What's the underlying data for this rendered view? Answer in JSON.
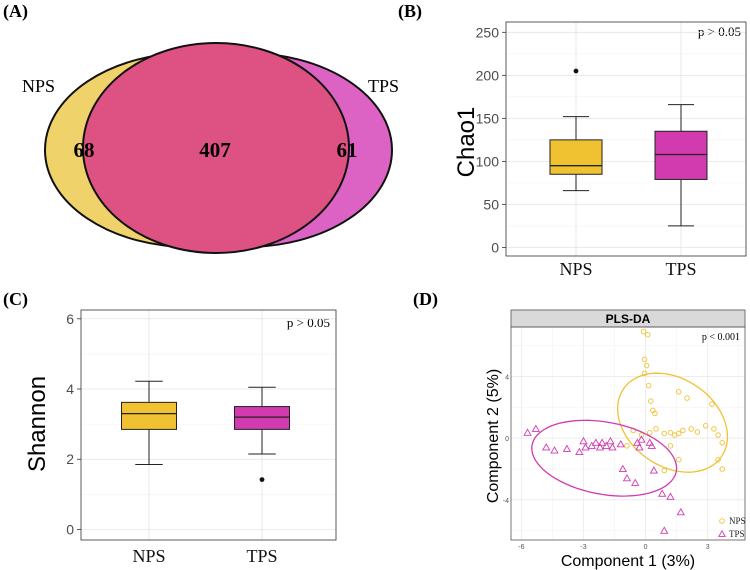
{
  "colors": {
    "nps": "#f0c232",
    "tps": "#d23ab0",
    "venn_nps": "#efd36a",
    "venn_tps": "#dc63c4",
    "venn_overlap": "#dd5282"
  },
  "chart_data": [
    {
      "panel": "(A)",
      "type": "venn",
      "sets": [
        {
          "name": "NPS",
          "unique": 68
        },
        {
          "name": "TPS",
          "unique": 61
        }
      ],
      "overlap": 407
    },
    {
      "panel": "(B)",
      "type": "boxplot",
      "ylabel": "Chao1",
      "ylim": [
        -10,
        262
      ],
      "yticks": [
        0,
        50,
        100,
        150,
        200,
        250
      ],
      "annotation": "p > 0.05",
      "groups": [
        {
          "name": "NPS",
          "color": "nps",
          "whisker_low": 66,
          "q1": 85,
          "median": 95,
          "q3": 125,
          "whisker_high": 152,
          "outliers": [
            205
          ]
        },
        {
          "name": "TPS",
          "color": "tps",
          "whisker_low": 25,
          "q1": 79,
          "median": 108,
          "q3": 135,
          "whisker_high": 166,
          "outliers": []
        }
      ]
    },
    {
      "panel": "(C)",
      "type": "boxplot",
      "ylabel": "Shannon",
      "ylim": [
        -0.3,
        6.25
      ],
      "yticks": [
        0,
        2,
        4,
        6
      ],
      "annotation": "p > 0.05",
      "groups": [
        {
          "name": "NPS",
          "color": "nps",
          "whisker_low": 1.85,
          "q1": 2.85,
          "median": 3.3,
          "q3": 3.62,
          "whisker_high": 4.22,
          "outliers": []
        },
        {
          "name": "TPS",
          "color": "tps",
          "whisker_low": 2.15,
          "q1": 2.85,
          "median": 3.2,
          "q3": 3.5,
          "whisker_high": 4.05,
          "outliers": [
            1.42
          ]
        }
      ]
    },
    {
      "panel": "(D)",
      "type": "scatter",
      "title": "PLS-DA",
      "xlabel": "Component 1 (3%)",
      "ylabel": "Component 2 (5%)",
      "xlim": [
        -6.5,
        4.8
      ],
      "ylim": [
        -6.6,
        7.2
      ],
      "xticks": [
        -6,
        -3,
        0,
        3
      ],
      "yticks": [
        -4,
        0,
        4
      ],
      "annotation": "p < 0.001",
      "legend": [
        "NPS",
        "TPS"
      ],
      "series": [
        {
          "name": "NPS",
          "marker": "circle",
          "color": "nps",
          "ellipse": {
            "cx": 1.3,
            "cy": 1.0,
            "a": 3.4,
            "b": 2.4,
            "angle_deg": -62
          },
          "points": [
            [
              -0.1,
              6.9
            ],
            [
              0.1,
              6.7
            ],
            [
              -0.05,
              5.1
            ],
            [
              0.05,
              4.7
            ],
            [
              -0.05,
              4.2
            ],
            [
              0.15,
              3.4
            ],
            [
              0.25,
              2.4
            ],
            [
              0.35,
              1.8
            ],
            [
              0.45,
              1.6
            ],
            [
              1.6,
              3.0
            ],
            [
              2.0,
              2.6
            ],
            [
              3.2,
              2.2
            ],
            [
              -0.6,
              0.5
            ],
            [
              -0.2,
              0.2
            ],
            [
              0.2,
              0.35
            ],
            [
              0.5,
              0.6
            ],
            [
              0.9,
              0.3
            ],
            [
              1.2,
              0.35
            ],
            [
              1.4,
              0.2
            ],
            [
              1.6,
              0.3
            ],
            [
              1.8,
              0.5
            ],
            [
              2.2,
              0.6
            ],
            [
              2.5,
              0.4
            ],
            [
              2.9,
              0.8
            ],
            [
              3.3,
              0.6
            ],
            [
              3.5,
              0.2
            ],
            [
              3.7,
              -0.3
            ],
            [
              3.5,
              -1.4
            ],
            [
              3.7,
              -2.0
            ],
            [
              1.2,
              -0.5
            ],
            [
              1.6,
              -1.4
            ],
            [
              -0.9,
              -0.5
            ],
            [
              0.9,
              -2.1
            ]
          ]
        },
        {
          "name": "TPS",
          "marker": "triangle",
          "color": "tps",
          "ellipse": {
            "cx": -2.0,
            "cy": -1.3,
            "a": 3.6,
            "b": 2.3,
            "angle_deg": -18
          },
          "points": [
            [
              -5.7,
              0.35
            ],
            [
              -5.3,
              0.6
            ],
            [
              -4.8,
              -0.6
            ],
            [
              -4.4,
              -0.8
            ],
            [
              -3.8,
              -0.7
            ],
            [
              -3.0,
              -0.2
            ],
            [
              -2.9,
              -0.6
            ],
            [
              -2.6,
              -0.5
            ],
            [
              -2.4,
              -0.3
            ],
            [
              -2.2,
              -0.6
            ],
            [
              -2.1,
              -0.3
            ],
            [
              -1.9,
              -0.5
            ],
            [
              -1.6,
              -0.6
            ],
            [
              -1.7,
              -0.2
            ],
            [
              -1.2,
              -0.4
            ],
            [
              -0.4,
              -0.3
            ],
            [
              -0.3,
              -0.6
            ],
            [
              -0.2,
              -0.1
            ],
            [
              0.2,
              -0.3
            ],
            [
              0.3,
              -0.5
            ],
            [
              -1.1,
              -2.0
            ],
            [
              -0.5,
              -2.9
            ],
            [
              0.4,
              -2.1
            ],
            [
              0.8,
              -3.6
            ],
            [
              1.2,
              -3.8
            ],
            [
              1.7,
              -4.8
            ],
            [
              0.9,
              -6.0
            ],
            [
              -0.9,
              -2.6
            ],
            [
              -3.2,
              -0.9
            ]
          ]
        }
      ]
    }
  ]
}
